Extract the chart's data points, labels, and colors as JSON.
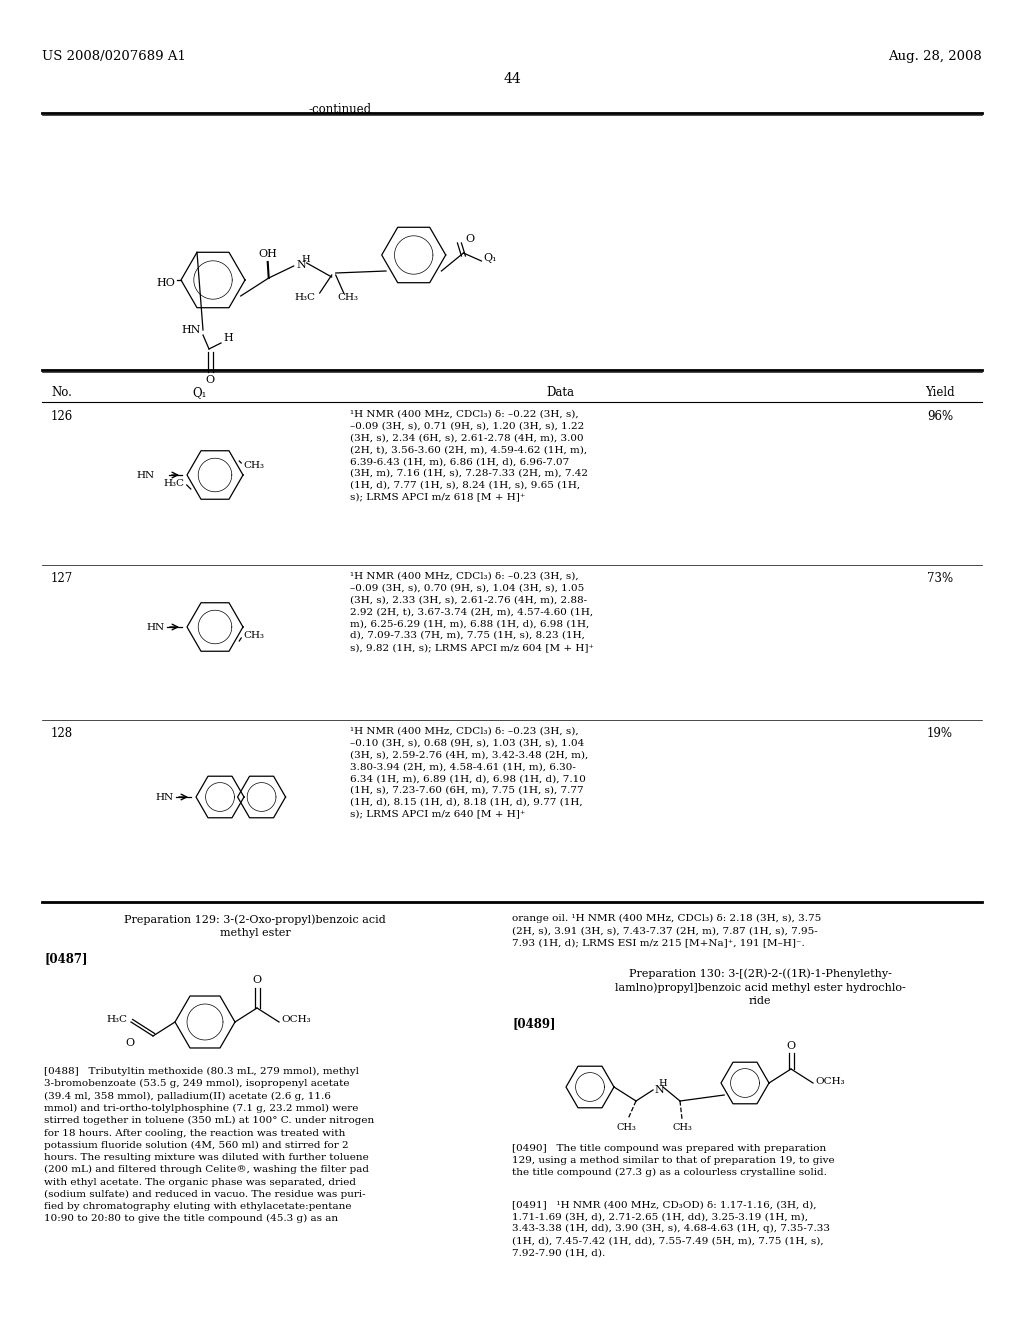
{
  "background_color": "#ffffff",
  "page_number": "44",
  "patent_left": "US 2008/0207689 A1",
  "patent_right": "Aug. 28, 2008",
  "continued_label": "-continued",
  "table_headers": [
    "No.",
    "Q₁",
    "Data",
    "Yield"
  ],
  "row126_no": "126",
  "row126_yield": "96%",
  "row126_data": "¹H NMR (400 MHz, CDCl₃) δ: –0.22 (3H, s),\n–0.09 (3H, s), 0.71 (9H, s), 1.20 (3H, s), 1.22\n(3H, s), 2.34 (6H, s), 2.61-2.78 (4H, m), 3.00\n(2H, t), 3.56-3.60 (2H, m), 4.59-4.62 (1H, m),\n6.39-6.43 (1H, m), 6.86 (1H, d), 6.96-7.07\n(3H, m), 7.16 (1H, s), 7.28-7.33 (2H, m), 7.42\n(1H, d), 7.77 (1H, s), 8.24 (1H, s), 9.65 (1H,\ns); LRMS APCI m/z 618 [M + H]⁺",
  "row127_no": "127",
  "row127_yield": "73%",
  "row127_data": "¹H NMR (400 MHz, CDCl₃) δ: –0.23 (3H, s),\n–0.09 (3H, s), 0.70 (9H, s), 1.04 (3H, s), 1.05\n(3H, s), 2.33 (3H, s), 2.61-2.76 (4H, m), 2.88-\n2.92 (2H, t), 3.67-3.74 (2H, m), 4.57-4.60 (1H,\nm), 6.25-6.29 (1H, m), 6.88 (1H, d), 6.98 (1H,\nd), 7.09-7.33 (7H, m), 7.75 (1H, s), 8.23 (1H,\ns), 9.82 (1H, s); LRMS APCI m/z 604 [M + H]⁺",
  "row128_no": "128",
  "row128_yield": "19%",
  "row128_data": "¹H NMR (400 MHz, CDCl₃) δ: –0.23 (3H, s),\n–0.10 (3H, s), 0.68 (9H, s), 1.03 (3H, s), 1.04\n(3H, s), 2.59-2.76 (4H, m), 3.42-3.48 (2H, m),\n3.80-3.94 (2H, m), 4.58-4.61 (1H, m), 6.30-\n6.34 (1H, m), 6.89 (1H, d), 6.98 (1H, d), 7.10\n(1H, s), 7.23-7.60 (6H, m), 7.75 (1H, s), 7.77\n(1H, d), 8.15 (1H, d), 8.18 (1H, d), 9.77 (1H,\ns); LRMS APCI m/z 640 [M + H]⁺",
  "prep129_title_l1": "Preparation 129: 3-(2-Oxo-propyl)benzoic acid",
  "prep129_title_l2": "methyl ester",
  "prep129_tag": "[0487]",
  "prep129_text": "[0488]   Tributyltin methoxide (80.3 mL, 279 mmol), methyl\n3-bromobenzoate (53.5 g, 249 mmol), isopropenyl acetate\n(39.4 ml, 358 mmol), palladium(II) acetate (2.6 g, 11.6\nmmol) and tri-ortho-tolylphosphine (7.1 g, 23.2 mmol) were\nstirred together in toluene (350 mL) at 100° C. under nitrogen\nfor 18 hours. After cooling, the reaction was treated with\npotassium fluoride solution (4M, 560 ml) and stirred for 2\nhours. The resulting mixture was diluted with further toluene\n(200 mL) and filtered through Celite®, washing the filter pad\nwith ethyl acetate. The organic phase was separated, dried\n(sodium sulfate) and reduced in vacuo. The residue was puri-\nfied by chromatography eluting with ethylacetate:pentane\n10:90 to 20:80 to give the title compound (45.3 g) as an",
  "prep129_result": "orange oil. ¹H NMR (400 MHz, CDCl₃) δ: 2.18 (3H, s), 3.75\n(2H, s), 3.91 (3H, s), 7.43-7.37 (2H, m), 7.87 (1H, s), 7.95-\n7.93 (1H, d); LRMS ESI m/z 215 [M+Na]⁺, 191 [M–H]⁻.",
  "prep130_title_l1": "Preparation 130: 3-[(2R)-2-((1R)-1-Phenylethy-",
  "prep130_title_l2": "lamlno)propyl]benzoic acid methyl ester hydrochlo-",
  "prep130_title_l3": "ride",
  "prep130_tag": "[0489]",
  "prep130_text490": "[0490]   The title compound was prepared with preparation\n129, using a method similar to that of preparation 19, to give\nthe title compound (27.3 g) as a colourless crystalline solid.",
  "prep130_text491": "[0491]   ¹H NMR (400 MHz, CD₃OD) δ: 1.17-1.16, (3H, d),\n1.71-1.69 (3H, d), 2.71-2.65 (1H, dd), 3.25-3.19 (1H, m),\n3.43-3.38 (1H, dd), 3.90 (3H, s), 4.68-4.63 (1H, q), 7.35-7.33\n(1H, d), 7.45-7.42 (1H, dd), 7.55-7.49 (5H, m), 7.75 (1H, s),\n7.92-7.90 (1H, d)."
}
